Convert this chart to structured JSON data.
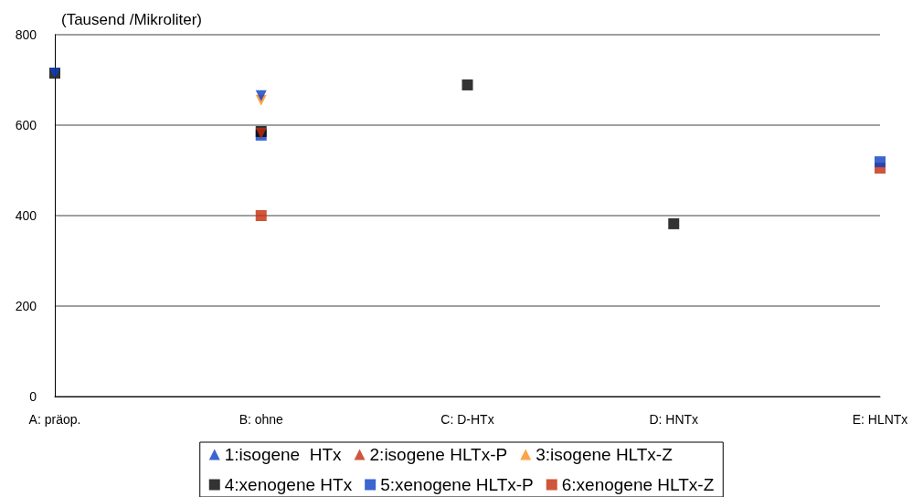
{
  "chart_data": {
    "type": "scatter",
    "ylabel": "(Tausend /Mikroliter)",
    "categories": [
      "A: präop.",
      "B: ohne",
      "C: D-HTx",
      "D: HNTx",
      "E: HLNTx"
    ],
    "series": [
      {
        "name": "1:isogene  HTx",
        "color": "#0a3fc4",
        "marker": "triangle",
        "values": [
          715,
          665,
          null,
          null,
          null
        ]
      },
      {
        "name": "2:isogene HLTx-P",
        "color": "#c42a0a",
        "marker": "triangle",
        "values": [
          null,
          582,
          null,
          null,
          null
        ]
      },
      {
        "name": "3:isogene HLTx-Z",
        "color": "#ff8c1a",
        "marker": "triangle",
        "values": [
          null,
          655,
          null,
          null,
          null
        ]
      },
      {
        "name": "4:xenogene HTx",
        "color": "#000000",
        "marker": "square",
        "values": [
          715,
          586,
          689,
          382,
          null
        ]
      },
      {
        "name": "5:xenogene HLTx-P",
        "color": "#0a3fc4",
        "marker": "square",
        "values": [
          null,
          578,
          null,
          null,
          519
        ]
      },
      {
        "name": "6:xenogene HLTx-Z",
        "color": "#c42a0a",
        "marker": "square",
        "values": [
          null,
          400,
          null,
          null,
          505
        ]
      }
    ],
    "ylim": [
      0,
      800
    ],
    "yticks": [
      0,
      200,
      400,
      600,
      800
    ],
    "grid": "y",
    "legend": "bottom"
  }
}
